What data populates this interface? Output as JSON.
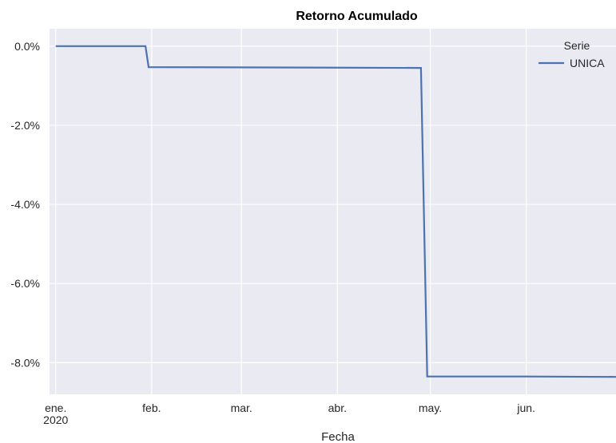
{
  "chart_data": {
    "type": "line",
    "title": "Retorno Acumulado",
    "xlabel": "Fecha",
    "ylabel": "",
    "x_ticks": [
      {
        "date": "2020-01-01",
        "label": "ene.",
        "sublabel": "2020"
      },
      {
        "date": "2020-02-01",
        "label": "feb.",
        "sublabel": ""
      },
      {
        "date": "2020-03-01",
        "label": "mar.",
        "sublabel": ""
      },
      {
        "date": "2020-04-01",
        "label": "abr.",
        "sublabel": ""
      },
      {
        "date": "2020-05-01",
        "label": "may.",
        "sublabel": ""
      },
      {
        "date": "2020-06-01",
        "label": "jun.",
        "sublabel": ""
      }
    ],
    "y_ticks": [
      {
        "value": 0.0,
        "label": "0.0%"
      },
      {
        "value": -2.0,
        "label": "-2.0%"
      },
      {
        "value": -4.0,
        "label": "-4.0%"
      },
      {
        "value": -6.0,
        "label": "-6.0%"
      },
      {
        "value": -8.0,
        "label": "-8.0%"
      }
    ],
    "xlim": [
      "2019-12-30",
      "2020-06-30"
    ],
    "ylim": [
      -8.8,
      0.44
    ],
    "grid": true,
    "legend": {
      "title": "Serie",
      "placement": "top-right"
    },
    "series": [
      {
        "name": "UNICA",
        "color": "#4c72b0",
        "points": [
          {
            "x": "2020-01-01",
            "y": 0.0
          },
          {
            "x": "2020-01-30",
            "y": 0.0
          },
          {
            "x": "2020-01-31",
            "y": -0.53
          },
          {
            "x": "2020-03-20",
            "y": -0.54
          },
          {
            "x": "2020-04-28",
            "y": -0.55
          },
          {
            "x": "2020-04-30",
            "y": -8.35
          },
          {
            "x": "2020-06-01",
            "y": -8.35
          },
          {
            "x": "2020-06-30",
            "y": -8.36
          }
        ]
      }
    ]
  }
}
